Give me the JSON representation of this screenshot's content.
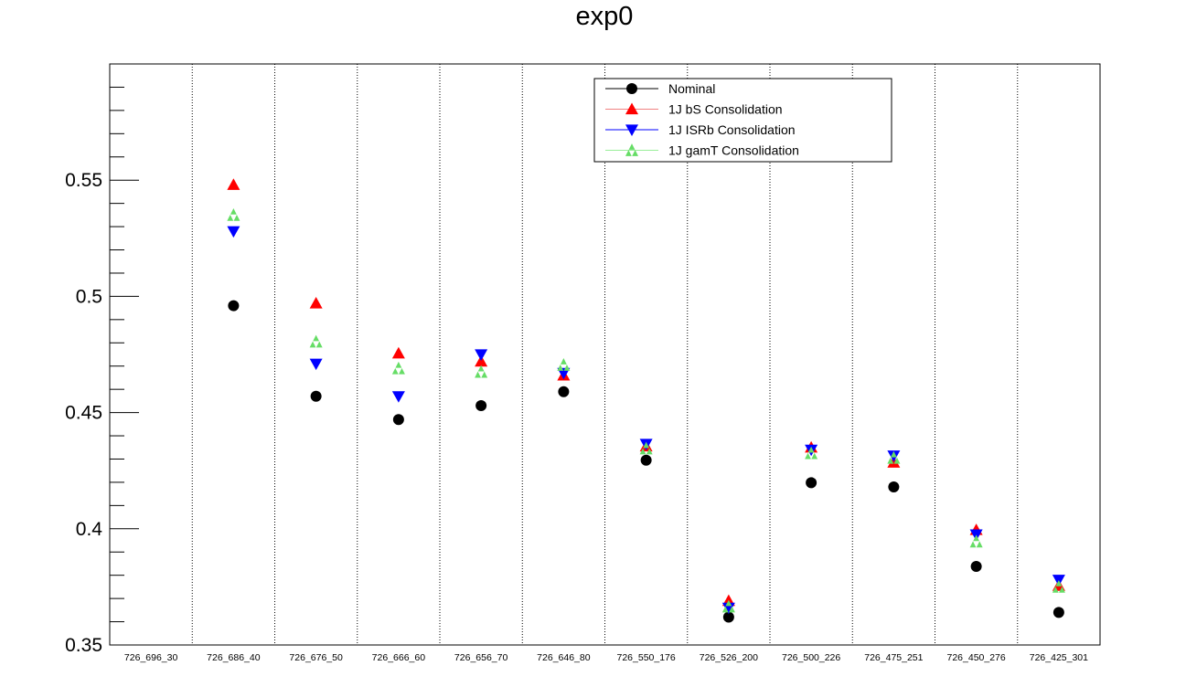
{
  "chart_data": {
    "type": "scatter",
    "title": "exp0",
    "xlabel": "",
    "ylabel": "",
    "ylim": [
      0.35,
      0.6
    ],
    "yticks": [
      "0.35",
      "0.4",
      "0.45",
      "0.5",
      "0.55"
    ],
    "grid": "vertical dotted lines between categories",
    "legend_position": "top-right",
    "categories": [
      "726_696_30",
      "726_686_40",
      "726_676_50",
      "726_666_60",
      "726_656_70",
      "726_646_80",
      "726_550_176",
      "726_526_200",
      "726_500_226",
      "726_475_251",
      "726_450_276",
      "726_425_301"
    ],
    "series": [
      {
        "name": "Nominal",
        "marker": "circle",
        "color": "#000000",
        "line_color": "#000000",
        "values": [
          null,
          0.496,
          0.457,
          0.447,
          0.453,
          0.459,
          0.4295,
          0.362,
          0.4198,
          0.418,
          0.3838,
          0.364
        ]
      },
      {
        "name": "1J bS Consolidation",
        "marker": "triangle-up",
        "color": "#ff0000",
        "line_color": "#f08080",
        "values": [
          null,
          0.548,
          0.497,
          0.4755,
          0.472,
          0.466,
          0.4355,
          0.369,
          0.435,
          0.4285,
          0.3995,
          0.3755
        ]
      },
      {
        "name": "1J ISRb Consolidation",
        "marker": "triangle-down",
        "color": "#0000ff",
        "line_color": "#0000ff",
        "values": [
          null,
          0.528,
          0.471,
          0.457,
          0.475,
          0.467,
          0.4365,
          0.366,
          0.434,
          0.4315,
          0.3975,
          0.378
        ]
      },
      {
        "name": "1J gamT Consolidation",
        "marker": "triple-triangle",
        "color": "#66dd66",
        "line_color": "#99ee99",
        "values": [
          null,
          0.535,
          0.4805,
          0.469,
          0.4675,
          0.4705,
          0.4345,
          0.3665,
          0.4325,
          0.4305,
          0.3945,
          0.375
        ]
      }
    ]
  }
}
